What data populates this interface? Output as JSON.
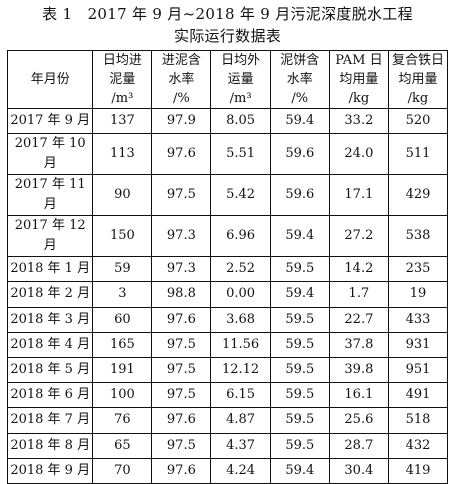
{
  "caption": {
    "line1": "表 1　2017 年 9 月~2018 年 9 月污泥深度脱水工程",
    "line2": "实际运行数据表"
  },
  "table": {
    "headers": [
      {
        "line1": "年月份",
        "line2": ""
      },
      {
        "line1": "日均进",
        "line2": "泥量",
        "line3": "/m³"
      },
      {
        "line1": "进泥含",
        "line2": "水率",
        "line3": "/%"
      },
      {
        "line1": "日均外",
        "line2": "运量",
        "line3": "/m³"
      },
      {
        "line1": "泥饼含",
        "line2": "水率",
        "line3": "/%"
      },
      {
        "line1": "PAM 日",
        "line2": "均用量",
        "line3": "/kg"
      },
      {
        "line1": "复合铁日",
        "line2": "均用量",
        "line3": "/kg"
      }
    ],
    "rows": [
      [
        "2017 年 9 月",
        "137",
        "97.9",
        "8.05",
        "59.4",
        "33.2",
        "520"
      ],
      [
        "2017 年 10 月",
        "113",
        "97.6",
        "5.51",
        "59.6",
        "24.0",
        "511"
      ],
      [
        "2017 年 11 月",
        "90",
        "97.5",
        "5.42",
        "59.6",
        "17.1",
        "429"
      ],
      [
        "2017 年 12 月",
        "150",
        "97.3",
        "6.96",
        "59.4",
        "27.2",
        "538"
      ],
      [
        "2018 年 1 月",
        "59",
        "97.3",
        "2.52",
        "59.5",
        "14.2",
        "235"
      ],
      [
        "2018 年 2 月",
        "3",
        "98.8",
        "0.00",
        "59.4",
        "1.7",
        "19"
      ],
      [
        "2018 年 3 月",
        "60",
        "97.6",
        "3.68",
        "59.5",
        "22.7",
        "433"
      ],
      [
        "2018 年 4 月",
        "165",
        "97.5",
        "11.56",
        "59.5",
        "37.8",
        "931"
      ],
      [
        "2018 年 5 月",
        "191",
        "97.5",
        "12.12",
        "59.5",
        "39.8",
        "951"
      ],
      [
        "2018 年 6 月",
        "100",
        "97.5",
        "6.15",
        "59.5",
        "16.1",
        "491"
      ],
      [
        "2018 年 7 月",
        "76",
        "97.6",
        "4.87",
        "59.5",
        "25.6",
        "518"
      ],
      [
        "2018 年 8 月",
        "65",
        "97.5",
        "4.37",
        "59.5",
        "28.7",
        "432"
      ],
      [
        "2018 年 9 月",
        "70",
        "97.6",
        "4.24",
        "59.4",
        "30.4",
        "419"
      ]
    ]
  }
}
